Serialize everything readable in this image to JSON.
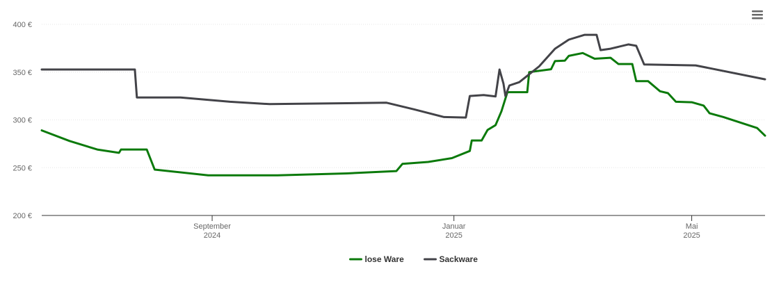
{
  "chart_data": {
    "type": "line",
    "xlim": [
      "2024-06-07",
      "2025-06-07"
    ],
    "xticks": [
      {
        "value": "2024-09-01",
        "label": [
          "September",
          "2024"
        ]
      },
      {
        "value": "2025-01-01",
        "label": [
          "Januar",
          "2025"
        ]
      },
      {
        "value": "2025-05-01",
        "label": [
          "Mai",
          "2025"
        ]
      }
    ],
    "ylim": [
      200,
      400
    ],
    "yticks": [
      {
        "value": 200,
        "label": "200 €"
      },
      {
        "value": 250,
        "label": "250 €"
      },
      {
        "value": 300,
        "label": "300 €"
      },
      {
        "value": 350,
        "label": "350 €"
      },
      {
        "value": 400,
        "label": "400 €"
      }
    ],
    "grid": true,
    "legend": "bottom",
    "series": [
      {
        "name": "lose Ware",
        "color": "#0b7a0b",
        "x": [
          "2024-06-07",
          "2024-06-21",
          "2024-07-05",
          "2024-07-16",
          "2024-07-17",
          "2024-07-30",
          "2024-08-03",
          "2024-08-30",
          "2024-10-04",
          "2024-11-08",
          "2024-12-03",
          "2024-12-06",
          "2024-12-19",
          "2024-12-31",
          "2025-01-09",
          "2025-01-10",
          "2025-01-15",
          "2025-01-18",
          "2025-01-22",
          "2025-01-25",
          "2025-01-28",
          "2025-02-07",
          "2025-02-08",
          "2025-02-19",
          "2025-02-21",
          "2025-02-26",
          "2025-02-28",
          "2025-03-07",
          "2025-03-13",
          "2025-03-21",
          "2025-03-25",
          "2025-04-01",
          "2025-04-03",
          "2025-04-09",
          "2025-04-15",
          "2025-04-19",
          "2025-04-23",
          "2025-05-01",
          "2025-05-07",
          "2025-05-10",
          "2025-05-17",
          "2025-06-03",
          "2025-06-07"
        ],
        "values": [
          289,
          278,
          269,
          265.5,
          269,
          269,
          248,
          242,
          242,
          244,
          246.5,
          254,
          256,
          260,
          267.5,
          278.5,
          278.5,
          289.5,
          294.5,
          309,
          329,
          329,
          350,
          353,
          361.5,
          362,
          367,
          370,
          364,
          365,
          358.5,
          358.5,
          340.5,
          340.5,
          330,
          328,
          319,
          318.5,
          315,
          307,
          303,
          291.5,
          283.5
        ]
      },
      {
        "name": "Sackware",
        "color": "#434348",
        "x": [
          "2024-06-07",
          "2024-07-24",
          "2024-07-25",
          "2024-08-16",
          "2024-09-10",
          "2024-09-30",
          "2024-11-28",
          "2024-12-12",
          "2024-12-27",
          "2025-01-07",
          "2025-01-09",
          "2025-01-16",
          "2025-01-22",
          "2025-01-24",
          "2025-01-26",
          "2025-01-27",
          "2025-01-29",
          "2025-02-03",
          "2025-02-13",
          "2025-02-21",
          "2025-02-28",
          "2025-03-08",
          "2025-03-14",
          "2025-03-16",
          "2025-03-21",
          "2025-03-30",
          "2025-04-03",
          "2025-04-07",
          "2025-05-03",
          "2025-06-07"
        ],
        "values": [
          352.7,
          352.7,
          323.5,
          323.5,
          319,
          316.5,
          318,
          311,
          303,
          302.5,
          325,
          326,
          324.5,
          352.7,
          338,
          325,
          336,
          339.5,
          356,
          374.5,
          384,
          389,
          389,
          373,
          374.5,
          379,
          377.5,
          358,
          357,
          342.5
        ]
      }
    ]
  }
}
